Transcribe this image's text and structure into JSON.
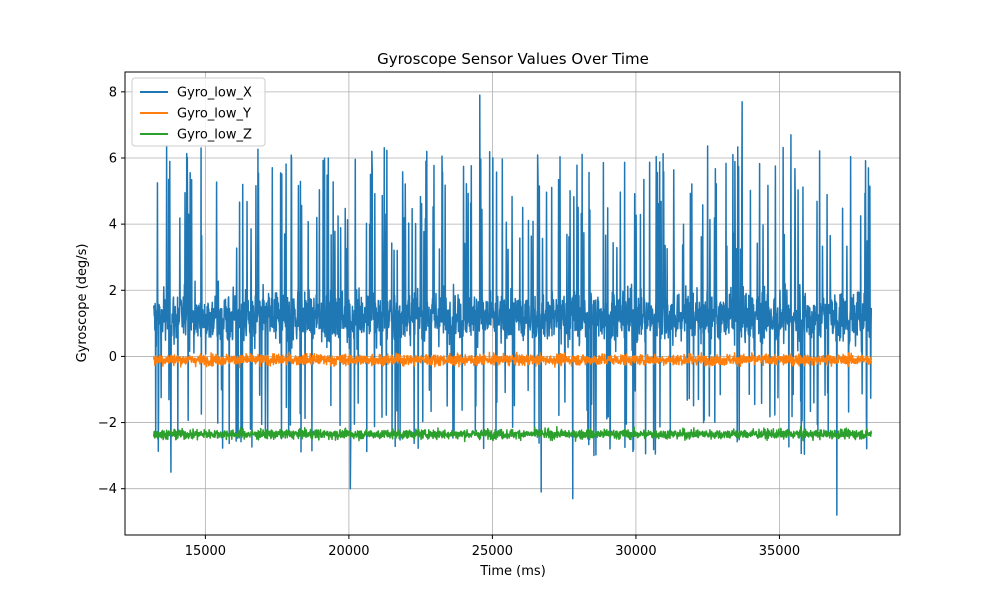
{
  "chart_data": {
    "type": "line",
    "title": "Gyroscope Sensor Values Over Time",
    "xlabel": "Time (ms)",
    "ylabel": "Gyroscope (deg/s)",
    "xlim": [
      12200,
      39200
    ],
    "ylim": [
      -5.4,
      8.6
    ],
    "xticks": [
      15000,
      20000,
      25000,
      30000,
      35000
    ],
    "yticks": [
      -4,
      -2,
      0,
      2,
      4,
      6,
      8
    ],
    "grid": true,
    "legend_position": "top-left",
    "series": [
      {
        "name": "Gyro_low_X",
        "color": "#1f77b4",
        "x_range": [
          13200,
          38200
        ],
        "center": 1.2,
        "spread": 2.2,
        "peaks": [
          {
            "x": 24560,
            "y": 7.9
          },
          {
            "x": 33700,
            "y": 7.7
          },
          {
            "x": 37000,
            "y": -4.8
          },
          {
            "x": 27800,
            "y": -4.3
          },
          {
            "x": 20050,
            "y": -4.0
          },
          {
            "x": 26700,
            "y": -4.1
          },
          {
            "x": 20800,
            "y": 6.2
          },
          {
            "x": 35400,
            "y": 6.7
          },
          {
            "x": 14850,
            "y": 6.3
          },
          {
            "x": 38100,
            "y": 5.7
          },
          {
            "x": 13800,
            "y": -3.5
          }
        ]
      },
      {
        "name": "Gyro_low_Y",
        "color": "#ff7f0e",
        "x_range": [
          13200,
          38200
        ],
        "center": -0.1,
        "spread": 0.35
      },
      {
        "name": "Gyro_low_Z",
        "color": "#2ca02c",
        "x_range": [
          13200,
          38200
        ],
        "center": -2.35,
        "spread": 0.3
      }
    ]
  }
}
